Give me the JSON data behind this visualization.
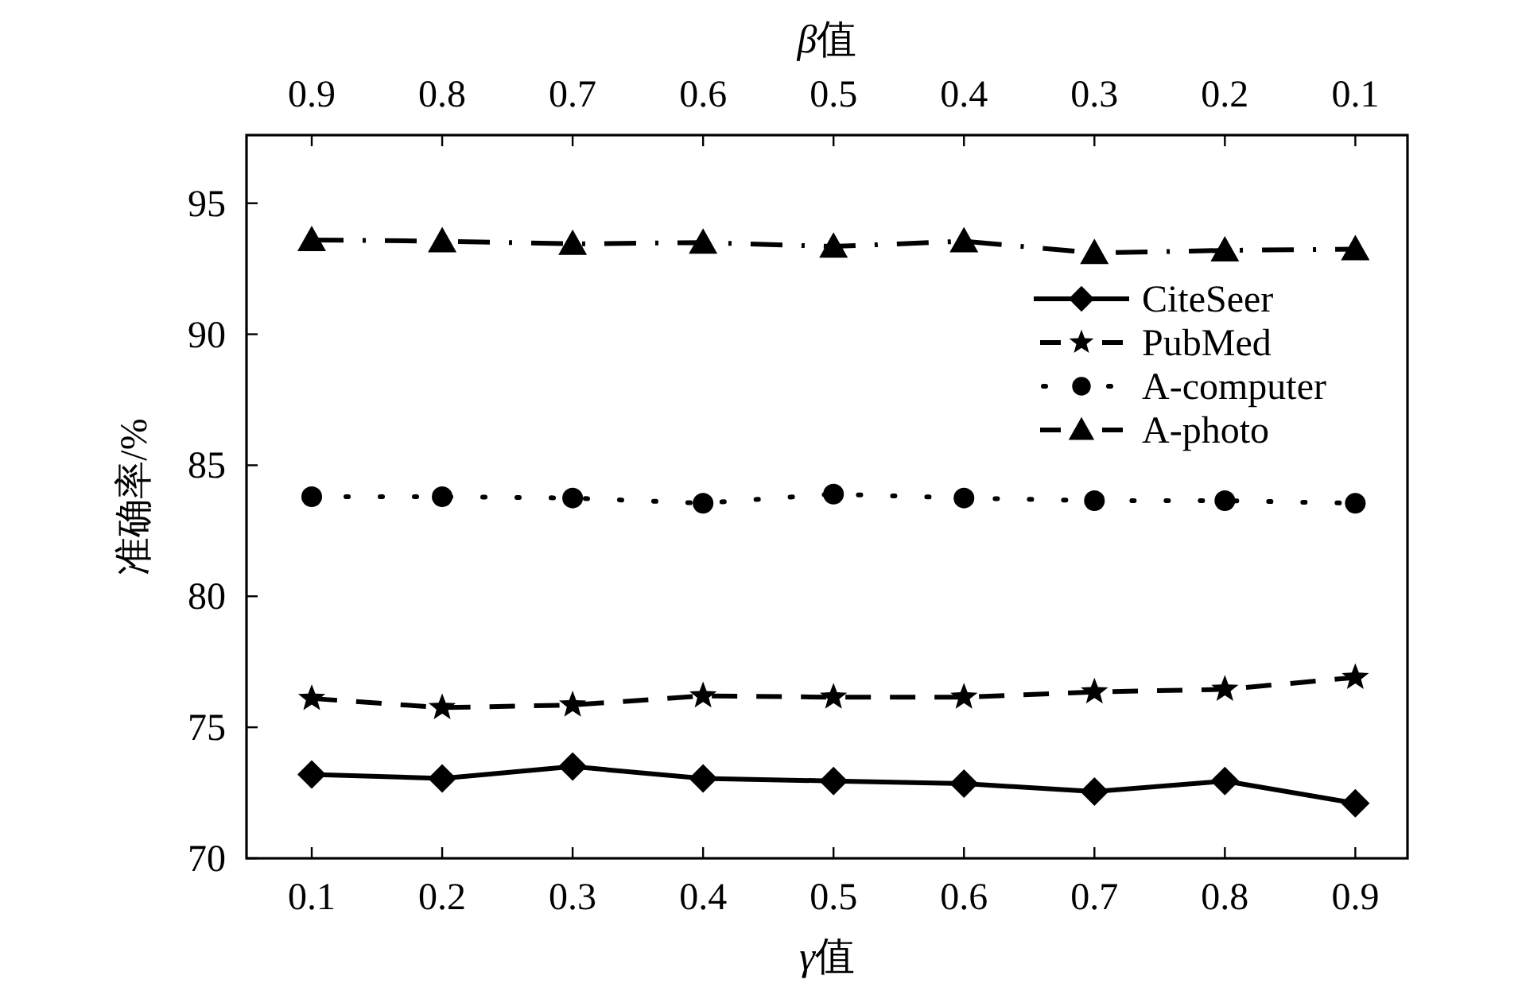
{
  "chart_data": {
    "type": "line",
    "xlabel": "γ值",
    "x2label": "β值",
    "ylabel": "准确率/%",
    "x": [
      0.1,
      0.2,
      0.3,
      0.4,
      0.5,
      0.6,
      0.7,
      0.8,
      0.9
    ],
    "xlim": [
      0.05,
      0.94
    ],
    "xticks": [
      0.1,
      0.2,
      0.3,
      0.4,
      0.5,
      0.6,
      0.7,
      0.8,
      0.9
    ],
    "x2lim": [
      0.95,
      0.06
    ],
    "x2ticks": [
      0.9,
      0.8,
      0.7,
      0.6,
      0.5,
      0.4,
      0.3,
      0.2,
      0.1
    ],
    "ylim": [
      70,
      97.6
    ],
    "yticks": [
      70,
      75,
      80,
      85,
      90,
      95
    ],
    "legend": "top right",
    "series": [
      {
        "name": "CiteSeer",
        "color": "#000000",
        "marker": "diamond",
        "line_style": "solid",
        "values": [
          73.2,
          73.05,
          73.5,
          73.05,
          72.95,
          72.85,
          72.55,
          72.95,
          72.1
        ]
      },
      {
        "name": "PubMed",
        "color": "#000000",
        "marker": "star",
        "line_style": "dashed",
        "values": [
          76.1,
          75.75,
          75.85,
          76.2,
          76.15,
          76.15,
          76.35,
          76.45,
          76.9
        ]
      },
      {
        "name": "A-computer",
        "color": "#000000",
        "marker": "circle",
        "line_style": "dotted",
        "values": [
          83.8,
          83.8,
          83.75,
          83.55,
          83.9,
          83.75,
          83.65,
          83.65,
          83.55
        ]
      },
      {
        "name": "A-photo",
        "color": "#000000",
        "marker": "triangle",
        "line_style": "dashdot",
        "values": [
          93.6,
          93.55,
          93.45,
          93.5,
          93.35,
          93.55,
          93.1,
          93.2,
          93.25
        ]
      }
    ]
  }
}
